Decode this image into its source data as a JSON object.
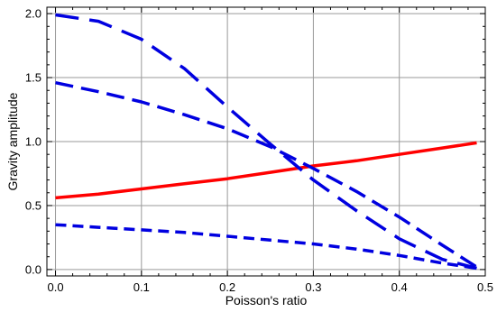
{
  "chart_data": {
    "type": "line",
    "title": "",
    "xlabel": "Poisson's ratio",
    "ylabel": "Gravity amplitude",
    "xlim": [
      -0.01,
      0.5
    ],
    "ylim": [
      -0.05,
      2.05
    ],
    "x_ticks": [
      0.0,
      0.1,
      0.2,
      0.3,
      0.4,
      0.5
    ],
    "x_tick_labels": [
      "0.0",
      "0.1",
      "0.2",
      "0.3",
      "0.4",
      "0.5"
    ],
    "y_ticks": [
      0.0,
      0.5,
      1.0,
      1.5,
      2.0
    ],
    "y_tick_labels": [
      "0.0",
      "0.5",
      "1.0",
      "1.5",
      "2.0"
    ],
    "grid": true,
    "legend": "none",
    "series": [
      {
        "color": "#ff0000",
        "style": "solid",
        "x": [
          0.0,
          0.05,
          0.1,
          0.15,
          0.2,
          0.25,
          0.3,
          0.35,
          0.4,
          0.45,
          0.49
        ],
        "y": [
          0.56,
          0.59,
          0.63,
          0.67,
          0.71,
          0.76,
          0.81,
          0.85,
          0.9,
          0.95,
          0.99
        ]
      },
      {
        "color": "#0000e0",
        "style": "long-dash",
        "x": [
          0.0,
          0.05,
          0.1,
          0.15,
          0.2,
          0.25,
          0.3,
          0.35,
          0.4,
          0.45,
          0.49
        ],
        "y": [
          1.99,
          1.94,
          1.8,
          1.57,
          1.27,
          0.98,
          0.7,
          0.46,
          0.24,
          0.08,
          0.01
        ]
      },
      {
        "color": "#0000e0",
        "style": "dash",
        "x": [
          0.0,
          0.05,
          0.1,
          0.15,
          0.2,
          0.25,
          0.3,
          0.35,
          0.4,
          0.45,
          0.49
        ],
        "y": [
          1.46,
          1.39,
          1.31,
          1.21,
          1.1,
          0.96,
          0.79,
          0.61,
          0.41,
          0.19,
          0.02
        ]
      },
      {
        "color": "#0000e0",
        "style": "short-dash",
        "x": [
          0.0,
          0.05,
          0.1,
          0.15,
          0.2,
          0.25,
          0.3,
          0.35,
          0.4,
          0.45,
          0.49
        ],
        "y": [
          0.35,
          0.33,
          0.31,
          0.29,
          0.26,
          0.23,
          0.2,
          0.16,
          0.11,
          0.05,
          0.01
        ]
      }
    ]
  }
}
